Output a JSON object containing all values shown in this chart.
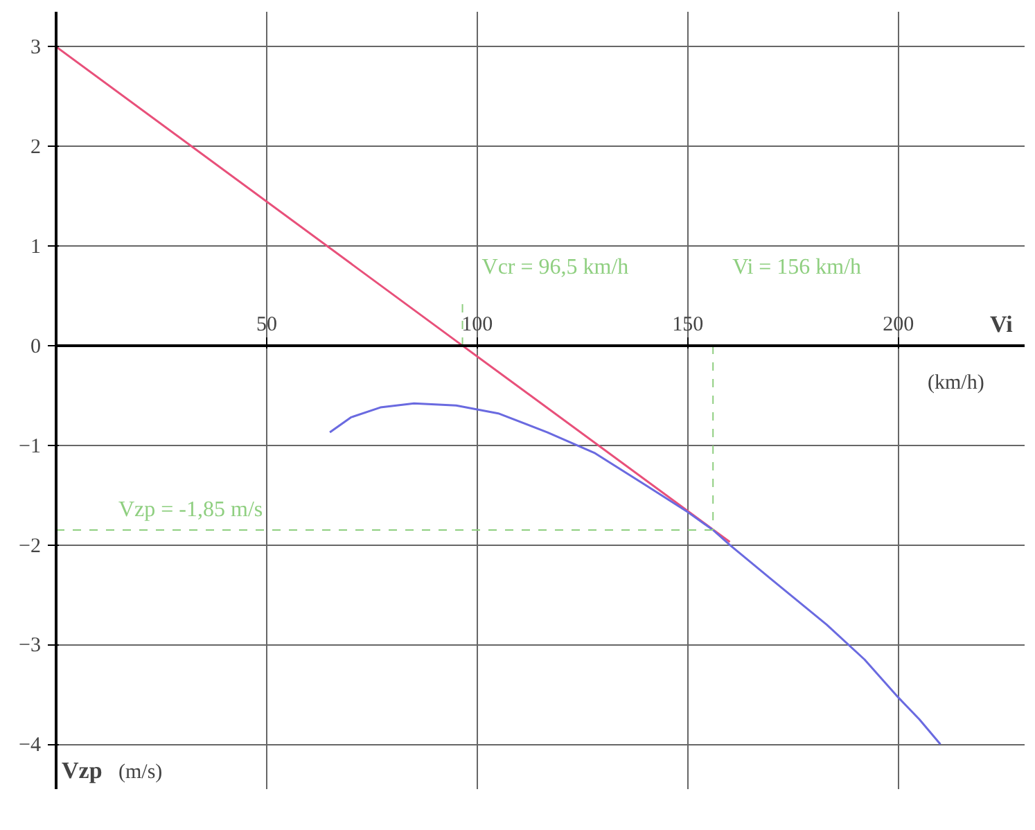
{
  "chart_data": {
    "type": "line",
    "xlabel": "Vi",
    "ylabel": "Vzp",
    "series": [
      {
        "color": "#e8507a",
        "x": [
          0,
          96.5,
          160
        ],
        "values": [
          3,
          0,
          -1.97
        ]
      },
      {
        "color": "#6a6ae0",
        "x": [
          65,
          70,
          77,
          85,
          95,
          105,
          116.7,
          128,
          140,
          150,
          156,
          160,
          170,
          183,
          192,
          200,
          205,
          210
        ],
        "values": [
          -0.87,
          -0.72,
          -0.62,
          -0.58,
          -0.6,
          -0.68,
          -0.87,
          -1.08,
          -1.4,
          -1.67,
          -1.85,
          -2.0,
          -2.35,
          -2.8,
          -3.15,
          -3.53,
          -3.75,
          -4.0
        ]
      }
    ],
    "xlim": [
      0,
      230
    ],
    "ylim": [
      -4.45,
      3.35
    ],
    "xticks": [
      50,
      100,
      150,
      200
    ],
    "yticks": [
      -4,
      -3,
      -2,
      -1,
      0,
      1,
      2,
      3
    ],
    "grid": true,
    "marker": "none",
    "line_style": "solid",
    "ref_lines": [
      {
        "axis": "x",
        "value": 96.5,
        "label": "Vcr = 96,5 km/h",
        "color": "#8fcf80",
        "line_style": "dashed"
      },
      {
        "axis": "x",
        "value": 156,
        "label": "Vi = 156 km/h",
        "color": "#8fcf80",
        "line_style": "dashed"
      },
      {
        "axis": "y",
        "value": -1.85,
        "label": "Vzp = -1,85 m/s",
        "color": "#8fcf80",
        "line_style": "dashed"
      }
    ],
    "annotations": [
      "(km/h)",
      "(m/s)"
    ]
  }
}
